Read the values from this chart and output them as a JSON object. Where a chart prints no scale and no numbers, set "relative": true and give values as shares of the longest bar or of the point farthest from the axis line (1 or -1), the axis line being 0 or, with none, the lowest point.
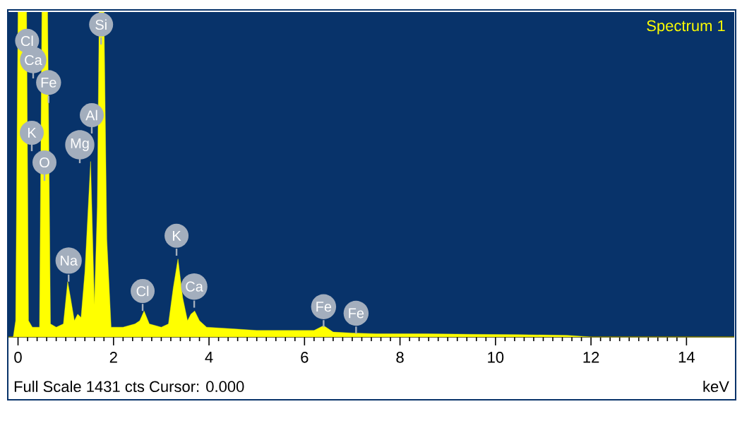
{
  "chart_data": {
    "type": "area",
    "relative": true,
    "xlabel": "keV",
    "xlim": [
      -0.2,
      15
    ],
    "xticks": [
      0,
      2,
      4,
      6,
      8,
      10,
      12,
      14
    ],
    "x": [
      -0.2,
      -0.1,
      -0.05,
      0.0,
      0.18,
      0.22,
      0.3,
      0.45,
      0.5,
      0.62,
      0.68,
      0.8,
      0.95,
      1.04,
      1.1,
      1.18,
      1.25,
      1.32,
      1.4,
      1.52,
      1.6,
      1.66,
      1.7,
      1.8,
      1.86,
      1.95,
      2.2,
      2.45,
      2.55,
      2.64,
      2.75,
      3.0,
      3.15,
      3.25,
      3.35,
      3.45,
      3.55,
      3.62,
      3.7,
      3.8,
      3.95,
      4.5,
      5.0,
      5.8,
      6.2,
      6.4,
      6.6,
      7.0,
      7.5,
      8.5,
      9.5,
      10.5,
      11.5,
      12.0,
      15.0
    ],
    "series": [
      {
        "name": "Spectrum 1",
        "color": "#ffff00",
        "values": [
          0,
          0,
          0.05,
          1,
          1,
          0.05,
          0.03,
          0.03,
          1,
          1,
          0.04,
          0.03,
          0.04,
          0.17,
          0.12,
          0.05,
          0.07,
          0.06,
          0.2,
          0.54,
          0.1,
          0.4,
          1,
          1,
          0.3,
          0.03,
          0.03,
          0.04,
          0.05,
          0.08,
          0.04,
          0.03,
          0.04,
          0.15,
          0.24,
          0.12,
          0.05,
          0.07,
          0.08,
          0.05,
          0.03,
          0.025,
          0.02,
          0.02,
          0.02,
          0.035,
          0.015,
          0.012,
          0.01,
          0.01,
          0.008,
          0.007,
          0.005,
          0,
          0
        ]
      }
    ],
    "annotations": [
      {
        "text": "Cl",
        "x": 0.19,
        "y": 0.85
      },
      "Ca",
      {
        "text": "Fe",
        "x": 0.64,
        "y": 0.72
      },
      "K",
      "O",
      {
        "text": "Si",
        "x": 1.74,
        "y": 0.9
      },
      "Al",
      "Mg",
      {
        "text": "Na",
        "x": 1.06,
        "y": 0.17
      },
      {
        "text": "K",
        "x": 3.32,
        "y": 0.25
      },
      {
        "text": "Cl",
        "x": 2.61,
        "y": 0.08
      },
      {
        "text": "Ca",
        "x": 3.69,
        "y": 0.09
      },
      {
        "text": "Fe",
        "x": 6.4,
        "y": 0.03
      },
      {
        "text": "Fe",
        "x": 7.08,
        "y": 0.01
      },
      "Full Scale 1431 cts Cursor: 0.000"
    ]
  }
}
